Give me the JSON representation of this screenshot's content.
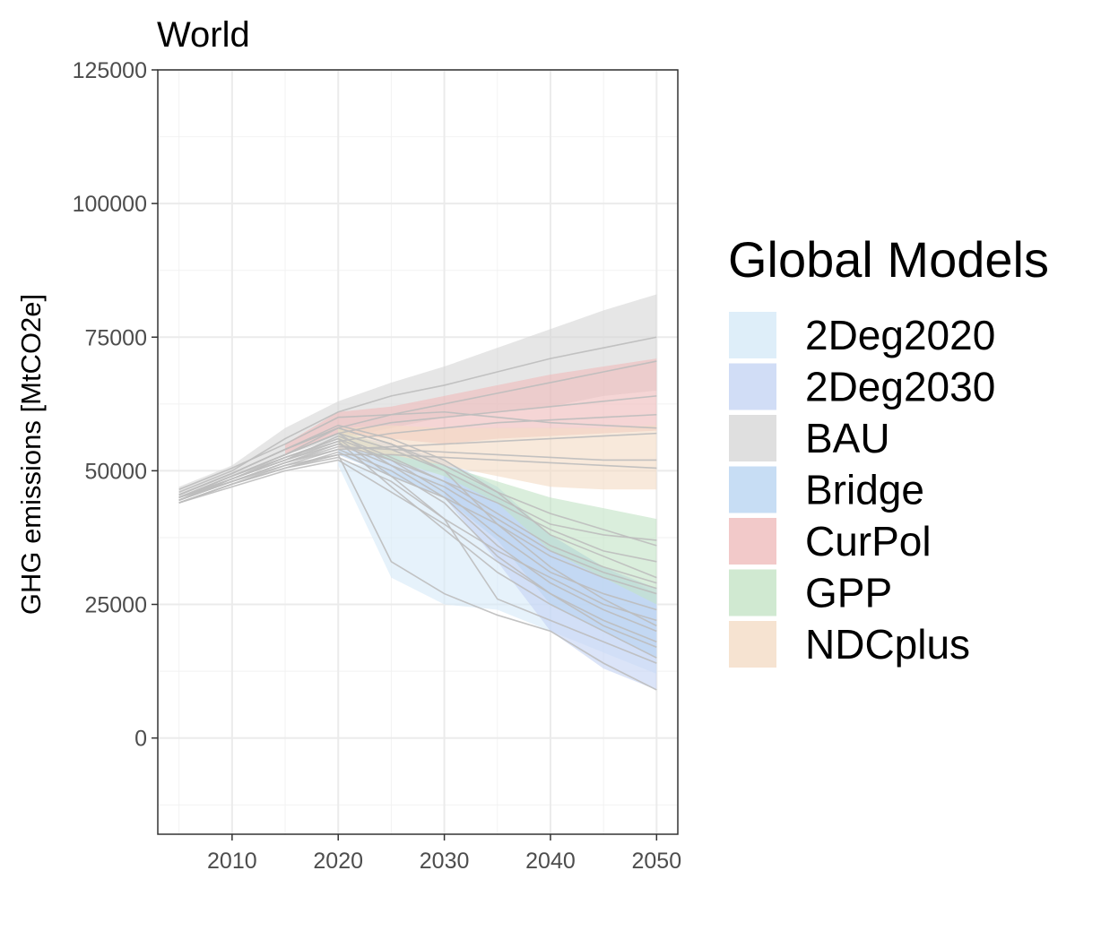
{
  "chart_data": {
    "type": "area",
    "title": "World",
    "xlabel": "",
    "ylabel": "GHG emissions [MtCO2e]",
    "xlim": [
      2003,
      2052
    ],
    "ylim": [
      -18000,
      125000
    ],
    "x_ticks": [
      2010,
      2020,
      2030,
      2040,
      2050
    ],
    "y_ticks": [
      0,
      25000,
      50000,
      75000,
      100000,
      125000
    ],
    "x_tick_labels": [
      "2010",
      "2020",
      "2030",
      "2040",
      "2050"
    ],
    "y_tick_labels": [
      "0",
      "25000",
      "50000",
      "75000",
      "100000",
      "125000"
    ],
    "grid": true,
    "legend": {
      "title": "Global Models",
      "position": "right"
    },
    "series": [
      {
        "name": "2Deg2020",
        "color": "#d6eaf8",
        "x": [
          2020,
          2025,
          2030,
          2035,
          2040,
          2045,
          2050
        ],
        "lower": [
          51000,
          30000,
          25000,
          24000,
          20000,
          16000,
          12000
        ],
        "upper": [
          52000,
          50000,
          48000,
          45000,
          38000,
          32000,
          28000
        ]
      },
      {
        "name": "2Deg2030",
        "color": "#c5d4f4",
        "x": [
          2030,
          2035,
          2040,
          2045,
          2050
        ],
        "lower": [
          45000,
          33000,
          20000,
          13000,
          9000
        ],
        "upper": [
          50000,
          46000,
          38000,
          32000,
          28000
        ]
      },
      {
        "name": "BAU",
        "color": "#d7d7d7",
        "x": [
          2005,
          2010,
          2015,
          2020,
          2025,
          2030,
          2035,
          2040,
          2045,
          2050
        ],
        "lower": [
          45000,
          49000,
          53000,
          56000,
          58000,
          60000,
          61000,
          62000,
          64000,
          65000
        ],
        "upper": [
          47000,
          51000,
          58000,
          63000,
          66500,
          69500,
          73000,
          76500,
          80000,
          83000
        ]
      },
      {
        "name": "Bridge",
        "color": "#b9d4f1",
        "x": [
          2020,
          2025,
          2030,
          2035,
          2040,
          2045,
          2050
        ],
        "lower": [
          53000,
          49000,
          45000,
          37000,
          25000,
          20000,
          15000
        ],
        "upper": [
          57000,
          55000,
          52000,
          47000,
          38000,
          32000,
          27000
        ]
      },
      {
        "name": "CurPol",
        "color": "#efbcbc",
        "x": [
          2015,
          2020,
          2025,
          2030,
          2035,
          2040,
          2045,
          2050
        ],
        "lower": [
          53000,
          57000,
          56000,
          55000,
          56000,
          56500,
          57000,
          57500
        ],
        "upper": [
          55000,
          61000,
          62000,
          64000,
          66000,
          68000,
          69500,
          71000
        ]
      },
      {
        "name": "GPP",
        "color": "#c4e3c6",
        "x": [
          2020,
          2025,
          2030,
          2035,
          2040,
          2045,
          2050
        ],
        "lower": [
          55000,
          52000,
          49000,
          44000,
          35000,
          30000,
          25000
        ],
        "upper": [
          58000,
          54000,
          51000,
          48000,
          45000,
          43000,
          41000
        ]
      },
      {
        "name": "NDCplus",
        "color": "#f4dcc5",
        "x": [
          2020,
          2025,
          2030,
          2035,
          2040,
          2045,
          2050
        ],
        "lower": [
          54000,
          53000,
          51000,
          49000,
          47000,
          46500,
          46500
        ],
        "upper": [
          58000,
          58500,
          58000,
          58000,
          58000,
          58000,
          58500
        ]
      }
    ],
    "model_runs_color": "#bdbdbd",
    "model_runs": [
      {
        "x": [
          2005,
          2010,
          2015,
          2020,
          2025,
          2030,
          2035,
          2040,
          2045,
          2050
        ],
        "y": [
          46000,
          50000,
          56000,
          61000,
          64000,
          66000,
          68500,
          71000,
          73000,
          75000
        ]
      },
      {
        "x": [
          2005,
          2010,
          2015,
          2020,
          2025,
          2030,
          2035,
          2040,
          2045,
          2050
        ],
        "y": [
          45500,
          49500,
          54000,
          58000,
          60500,
          62500,
          64500,
          66500,
          68500,
          70500
        ]
      },
      {
        "x": [
          2005,
          2010,
          2015,
          2020,
          2025,
          2030,
          2035,
          2040,
          2045,
          2050
        ],
        "y": [
          45000,
          49000,
          53000,
          57000,
          59000,
          60000,
          61000,
          62000,
          63000,
          64000
        ]
      },
      {
        "x": [
          2005,
          2010,
          2015,
          2020,
          2025,
          2030,
          2035,
          2040,
          2045,
          2050
        ],
        "y": [
          44500,
          48500,
          52000,
          55500,
          57000,
          58000,
          59000,
          59500,
          60000,
          60500
        ]
      },
      {
        "x": [
          2005,
          2010,
          2015,
          2020,
          2025,
          2030,
          2035,
          2040,
          2045,
          2050
        ],
        "y": [
          45000,
          48000,
          51000,
          54000,
          54500,
          55000,
          55500,
          56000,
          56500,
          57000
        ]
      },
      {
        "x": [
          2005,
          2010,
          2015,
          2020,
          2025,
          2030,
          2035,
          2040,
          2045,
          2050
        ],
        "y": [
          44000,
          47500,
          50500,
          53000,
          53000,
          52500,
          52000,
          51500,
          51000,
          50500
        ]
      },
      {
        "x": [
          2005,
          2010,
          2015,
          2020,
          2025,
          2030,
          2035,
          2040,
          2045,
          2050
        ],
        "y": [
          44500,
          48000,
          51500,
          54500,
          54000,
          53500,
          53000,
          52500,
          52000,
          52000
        ]
      },
      {
        "x": [
          2005,
          2010,
          2015,
          2020,
          2025,
          2030,
          2035,
          2040,
          2045,
          2050
        ],
        "y": [
          46500,
          50500,
          55000,
          60000,
          60500,
          61000,
          60000,
          59000,
          58500,
          58000
        ]
      },
      {
        "x": [
          2005,
          2010,
          2015,
          2020,
          2025,
          2030,
          2035,
          2040,
          2045,
          2050
        ],
        "y": [
          45000,
          49000,
          53000,
          57000,
          54000,
          50000,
          45000,
          40000,
          38000,
          37000
        ]
      },
      {
        "x": [
          2005,
          2010,
          2015,
          2020,
          2025,
          2030,
          2035,
          2040,
          2045,
          2050
        ],
        "y": [
          45500,
          49500,
          54000,
          58500,
          56000,
          52000,
          46000,
          38000,
          34000,
          30000
        ]
      },
      {
        "x": [
          2005,
          2010,
          2015,
          2020,
          2025,
          2030,
          2035,
          2040,
          2045,
          2050
        ],
        "y": [
          44000,
          47500,
          50500,
          53500,
          49000,
          45000,
          40000,
          34000,
          30000,
          27000
        ]
      },
      {
        "x": [
          2005,
          2010,
          2015,
          2020,
          2025,
          2030,
          2035,
          2040,
          2045,
          2050
        ],
        "y": [
          44500,
          48000,
          51500,
          55000,
          51000,
          47000,
          41000,
          35000,
          31000,
          28000
        ]
      },
      {
        "x": [
          2005,
          2010,
          2015,
          2020,
          2025,
          2030,
          2035,
          2040,
          2045,
          2050
        ],
        "y": [
          45000,
          48500,
          52500,
          56000,
          52000,
          46000,
          38000,
          31000,
          27000,
          24000
        ]
      },
      {
        "x": [
          2005,
          2010,
          2015,
          2020,
          2025,
          2030,
          2035,
          2040,
          2045,
          2050
        ],
        "y": [
          44000,
          47000,
          50000,
          52000,
          46000,
          40000,
          33000,
          27000,
          22000,
          18000
        ]
      },
      {
        "x": [
          2005,
          2010,
          2015,
          2020,
          2025,
          2030,
          2035,
          2040,
          2045,
          2050
        ],
        "y": [
          45000,
          49000,
          53000,
          57000,
          51000,
          45000,
          36000,
          29000,
          24000,
          20000
        ]
      },
      {
        "x": [
          2005,
          2010,
          2015,
          2020,
          2025,
          2030,
          2035,
          2040,
          2045,
          2050
        ],
        "y": [
          44500,
          48500,
          52500,
          55500,
          47000,
          39000,
          31000,
          25000,
          20000,
          15000
        ]
      },
      {
        "x": [
          2005,
          2010,
          2015,
          2020,
          2025,
          2030,
          2035,
          2040,
          2045,
          2050
        ],
        "y": [
          44000,
          47500,
          51000,
          53000,
          33000,
          27000,
          23000,
          20000,
          14000,
          9000
        ]
      },
      {
        "x": [
          2005,
          2010,
          2015,
          2020,
          2025,
          2030,
          2035,
          2040,
          2045,
          2050
        ],
        "y": [
          45000,
          49000,
          52500,
          56000,
          49000,
          41000,
          26000,
          22000,
          18000,
          14000
        ]
      },
      {
        "x": [
          2005,
          2010,
          2015,
          2020,
          2025,
          2030,
          2035,
          2040,
          2045,
          2050
        ],
        "y": [
          45500,
          49500,
          54000,
          58000,
          55000,
          50000,
          40000,
          32000,
          26000,
          21000
        ]
      },
      {
        "x": [
          2005,
          2010,
          2015,
          2020,
          2025,
          2030,
          2035,
          2040,
          2045,
          2050
        ],
        "y": [
          44500,
          48000,
          51500,
          54000,
          50000,
          44000,
          34000,
          27000,
          21000,
          17000
        ]
      },
      {
        "x": [
          2005,
          2010,
          2015,
          2020,
          2025,
          2030,
          2035,
          2040,
          2045,
          2050
        ],
        "y": [
          45000,
          48500,
          52000,
          55000,
          52000,
          48000,
          42000,
          36000,
          32000,
          29000
        ]
      },
      {
        "x": [
          2005,
          2010,
          2015,
          2020,
          2025,
          2030,
          2035,
          2040,
          2045,
          2050
        ],
        "y": [
          44500,
          48500,
          52000,
          56500,
          52500,
          48000,
          44000,
          39000,
          35000,
          33000
        ]
      },
      {
        "x": [
          2005,
          2010,
          2015,
          2020,
          2025,
          2030,
          2035,
          2040,
          2045,
          2050
        ],
        "y": [
          45000,
          49000,
          53000,
          58000,
          55000,
          51000,
          46000,
          42000,
          39000,
          36000
        ]
      },
      {
        "x": [
          2005,
          2010,
          2015,
          2020,
          2025,
          2030,
          2035,
          2040,
          2045,
          2050
        ],
        "y": [
          44000,
          47500,
          50500,
          52500,
          48000,
          41000,
          35000,
          30000,
          25000,
          22000
        ]
      }
    ]
  }
}
